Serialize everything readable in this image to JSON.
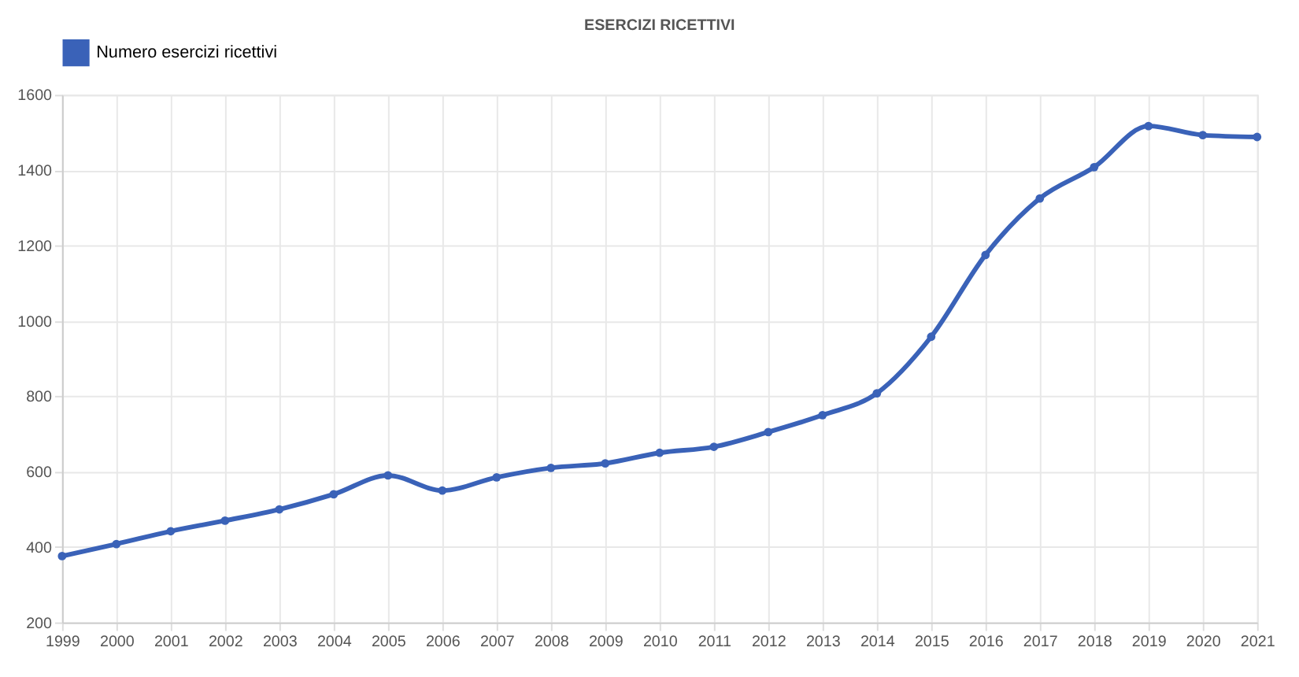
{
  "chart_data": {
    "type": "line",
    "title": "ESERCIZI RICETTIVI",
    "categories": [
      "1999",
      "2000",
      "2001",
      "2002",
      "2003",
      "2004",
      "2005",
      "2006",
      "2007",
      "2008",
      "2009",
      "2010",
      "2011",
      "2012",
      "2013",
      "2014",
      "2015",
      "2016",
      "2017",
      "2018",
      "2019",
      "2020",
      "2021"
    ],
    "series": [
      {
        "name": "Numero esercizi ricettivi",
        "color": "#3a62b8",
        "values": [
          376,
          408,
          442,
          470,
          500,
          540,
          590,
          550,
          585,
          610,
          622,
          650,
          666,
          705,
          750,
          808,
          958,
          1175,
          1325,
          1408,
          1517,
          1493,
          1488
        ]
      }
    ],
    "ylim": [
      200,
      1600
    ],
    "yticks": [
      200,
      400,
      600,
      800,
      1000,
      1200,
      1400,
      1600
    ],
    "grid": true,
    "legend": "top",
    "marker": "circle",
    "line_style": "solid"
  }
}
